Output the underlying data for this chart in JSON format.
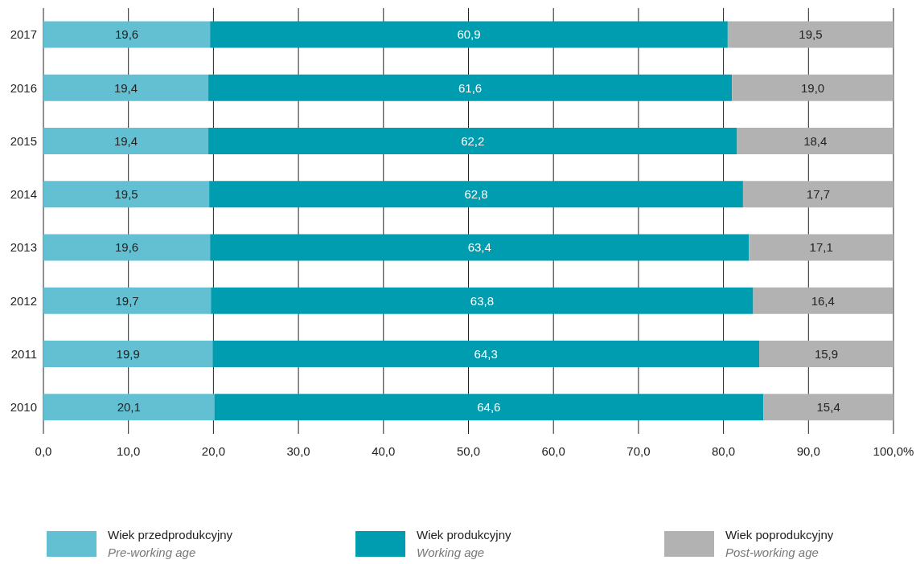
{
  "chart_data": {
    "type": "bar",
    "orientation": "horizontal",
    "stacked": true,
    "categories": [
      "2017",
      "2016",
      "2015",
      "2014",
      "2013",
      "2012",
      "2011",
      "2010"
    ],
    "series": [
      {
        "name": "Wiek przedprodukcyjny\nPre-working age",
        "color": "#62c0d2",
        "values": [
          19.6,
          19.4,
          19.4,
          19.5,
          19.6,
          19.7,
          19.9,
          20.1
        ],
        "value_labels": [
          "19,6",
          "19,4",
          "19,4",
          "19,5",
          "19,6",
          "19,7",
          "19,9",
          "20,1"
        ]
      },
      {
        "name": "Wiek produkcyjny\nWorking age",
        "color": "#009cb0",
        "values": [
          60.9,
          61.6,
          62.2,
          62.8,
          63.4,
          63.8,
          64.3,
          64.6
        ],
        "value_labels": [
          "60,9",
          "61,6",
          "62,2",
          "62,8",
          "63,4",
          "63,8",
          "64,3",
          "64,6"
        ]
      },
      {
        "name": "Wiek poprodukcyjny\nPost-working age",
        "color": "#b2b2b2",
        "values": [
          19.5,
          19.0,
          18.4,
          17.7,
          17.1,
          16.4,
          15.9,
          15.4
        ],
        "value_labels": [
          "19,5",
          "19,0",
          "18,4",
          "17,7",
          "17,1",
          "16,4",
          "15,9",
          "15,4"
        ]
      }
    ],
    "xlim": [
      0,
      100
    ],
    "xticks": [
      {
        "value": 0,
        "label": "0,0"
      },
      {
        "value": 10,
        "label": "10,0"
      },
      {
        "value": 20,
        "label": "20,0"
      },
      {
        "value": 30,
        "label": "30,0"
      },
      {
        "value": 40,
        "label": "40,0"
      },
      {
        "value": 50,
        "label": "50,0"
      },
      {
        "value": 60,
        "label": "60,0"
      },
      {
        "value": 70,
        "label": "70,0"
      },
      {
        "value": 80,
        "label": "80,0"
      },
      {
        "value": 90,
        "label": "90,0"
      },
      {
        "value": 100,
        "label": "100,0%"
      }
    ],
    "grid": "x",
    "legend": "bottom"
  }
}
